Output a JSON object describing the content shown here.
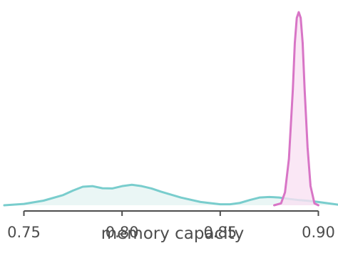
{
  "chart_data": {
    "type": "area",
    "title": "",
    "xlabel": "memory capacity",
    "ylabel": "",
    "xlim": [
      0.74,
      0.91
    ],
    "ylim": [
      0,
      1
    ],
    "grid": false,
    "ticks": [
      {
        "value": 0.75,
        "label": "0.75"
      },
      {
        "value": 0.8,
        "label": "0.80"
      },
      {
        "value": 0.85,
        "label": "0.85"
      },
      {
        "value": 0.9,
        "label": "0.90"
      }
    ],
    "colors": {
      "teal_line": "#79cdcd",
      "teal_fill": "#e6f4f3",
      "pink_line": "#d875c6",
      "pink_fill": "#f9e1f2",
      "axis": "#4d4d4d"
    },
    "series": [
      {
        "color": "teal",
        "x": [
          0.74,
          0.75,
          0.76,
          0.77,
          0.775,
          0.78,
          0.785,
          0.79,
          0.795,
          0.8,
          0.805,
          0.81,
          0.815,
          0.82,
          0.83,
          0.84,
          0.85,
          0.855,
          0.86,
          0.865,
          0.87,
          0.875,
          0.88,
          0.885,
          0.89,
          0.895,
          0.9,
          0.905,
          0.91
        ],
        "y": [
          0.0,
          0.007,
          0.024,
          0.053,
          0.076,
          0.096,
          0.099,
          0.088,
          0.087,
          0.099,
          0.106,
          0.099,
          0.087,
          0.07,
          0.04,
          0.017,
          0.005,
          0.005,
          0.012,
          0.027,
          0.04,
          0.043,
          0.04,
          0.033,
          0.027,
          0.023,
          0.017,
          0.01,
          0.003
        ]
      },
      {
        "color": "pink",
        "x": [
          0.8775,
          0.881,
          0.883,
          0.885,
          0.887,
          0.888,
          0.889,
          0.89,
          0.891,
          0.892,
          0.893,
          0.8945,
          0.896,
          0.898,
          0.9
        ],
        "y": [
          0.0,
          0.01,
          0.067,
          0.24,
          0.6,
          0.84,
          0.97,
          1.0,
          0.97,
          0.84,
          0.6,
          0.3,
          0.1,
          0.01,
          0.0
        ]
      }
    ]
  }
}
